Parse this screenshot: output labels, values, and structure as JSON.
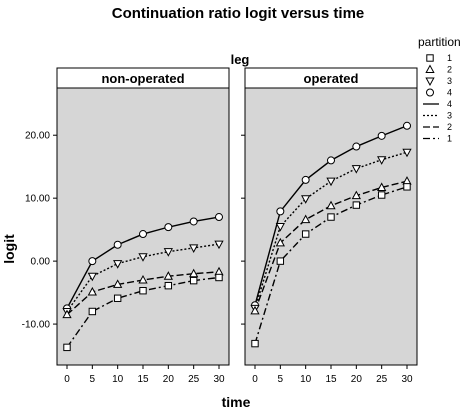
{
  "chart_data": {
    "type": "line",
    "title": "Continuation ratio logit versus time",
    "facet_title": "leg",
    "xlabel": "time",
    "ylabel": "logit",
    "x": [
      0,
      5,
      10,
      15,
      20,
      25,
      30
    ],
    "x_ticks": [
      "0",
      "5",
      "10",
      "15",
      "20",
      "25",
      "30"
    ],
    "ylim": [
      -16.5,
      27.5
    ],
    "y_ticks": [
      "-10.00",
      "0.00",
      "10.00",
      "20.00"
    ],
    "y_tick_values": [
      -10,
      0,
      10,
      20
    ],
    "colors": {
      "panel_bg": "#d6d6d6",
      "line": "#000000",
      "marker_fill": "#ffffff"
    },
    "legend": {
      "title": "partition",
      "position": "right",
      "marker_entries": [
        {
          "label": "1",
          "marker": "square"
        },
        {
          "label": "2",
          "marker": "triangle-up"
        },
        {
          "label": "3",
          "marker": "triangle-down"
        },
        {
          "label": "4",
          "marker": "circle"
        }
      ],
      "line_entries": [
        {
          "label": "4",
          "dash": "solid"
        },
        {
          "label": "3",
          "dash": "dot"
        },
        {
          "label": "2",
          "dash": "long-dash"
        },
        {
          "label": "1",
          "dash": "dash-dot"
        }
      ]
    },
    "panels": [
      {
        "label": "non-operated",
        "series": [
          {
            "partition": "4",
            "values": [
              -7.5,
              0,
              2.6,
              4.3,
              5.4,
              6.3,
              7.0
            ]
          },
          {
            "partition": "3",
            "values": [
              -8.0,
              -2.4,
              -0.4,
              0.7,
              1.5,
              2.1,
              2.7
            ]
          },
          {
            "partition": "2",
            "values": [
              -8.5,
              -4.9,
              -3.7,
              -3.0,
              -2.4,
              -2.0,
              -1.7
            ]
          },
          {
            "partition": "1",
            "values": [
              -13.7,
              -8.0,
              -5.9,
              -4.7,
              -3.9,
              -3.1,
              -2.6
            ]
          }
        ]
      },
      {
        "label": "operated",
        "series": [
          {
            "partition": "4",
            "values": [
              -7.0,
              7.9,
              12.9,
              16.0,
              18.2,
              19.9,
              21.5
            ]
          },
          {
            "partition": "3",
            "values": [
              -7.5,
              5.5,
              9.9,
              12.7,
              14.7,
              16.1,
              17.3
            ]
          },
          {
            "partition": "2",
            "values": [
              -7.9,
              2.9,
              6.6,
              8.8,
              10.4,
              11.7,
              12.7
            ]
          },
          {
            "partition": "1",
            "values": [
              -13.1,
              0,
              4.3,
              7.0,
              8.9,
              10.5,
              11.8
            ]
          }
        ]
      }
    ]
  }
}
